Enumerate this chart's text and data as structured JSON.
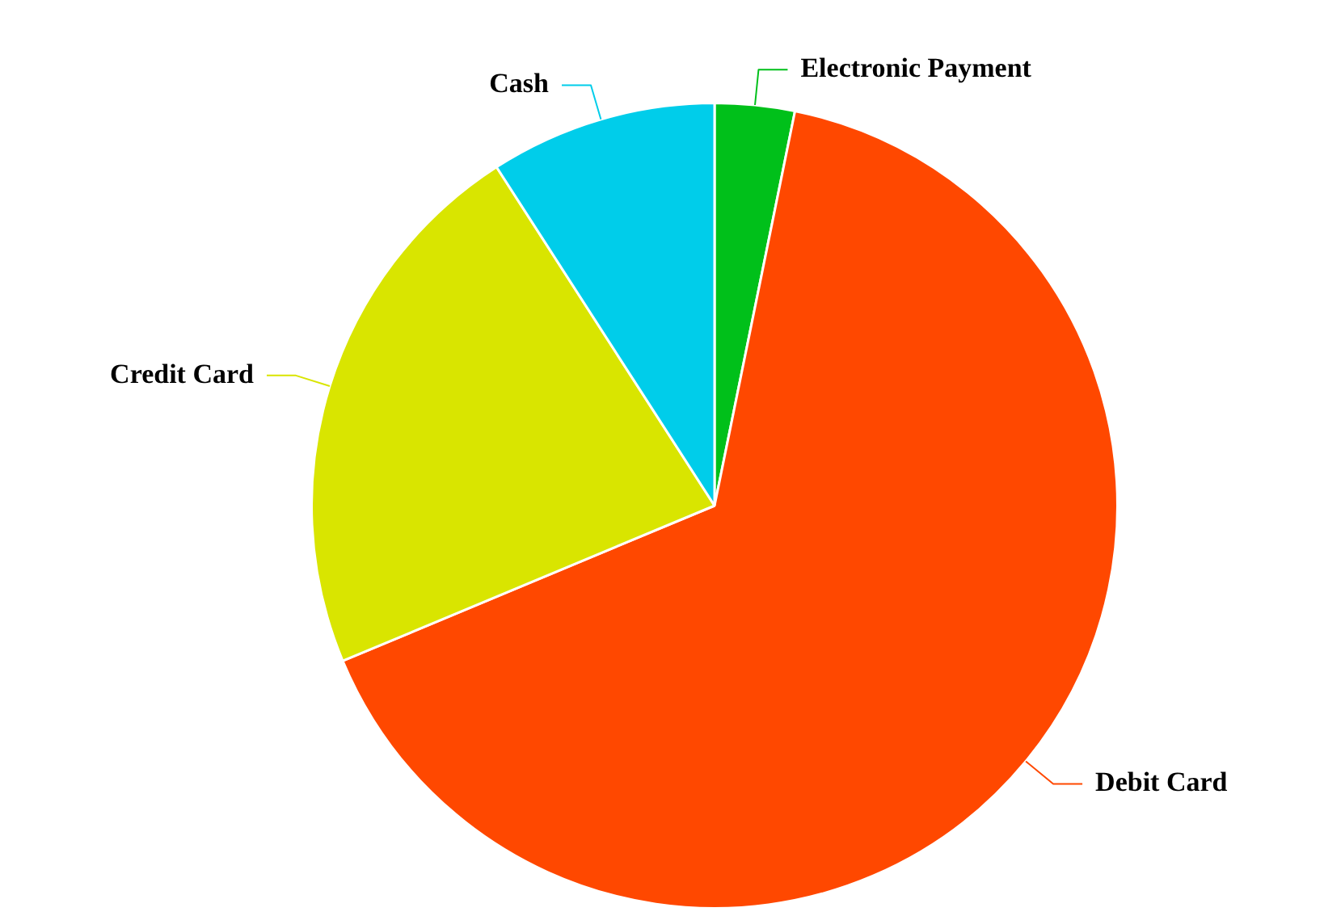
{
  "chart_data": {
    "type": "pie",
    "categories": [
      "Electronic Payment",
      "Debit Card",
      "Credit Card",
      "Cash"
    ],
    "values": [
      3.2,
      65.5,
      22.2,
      9.1
    ],
    "colors": [
      "#00c01a",
      "#ff4800",
      "#d9e500",
      "#00cdea"
    ],
    "legend": false
  }
}
